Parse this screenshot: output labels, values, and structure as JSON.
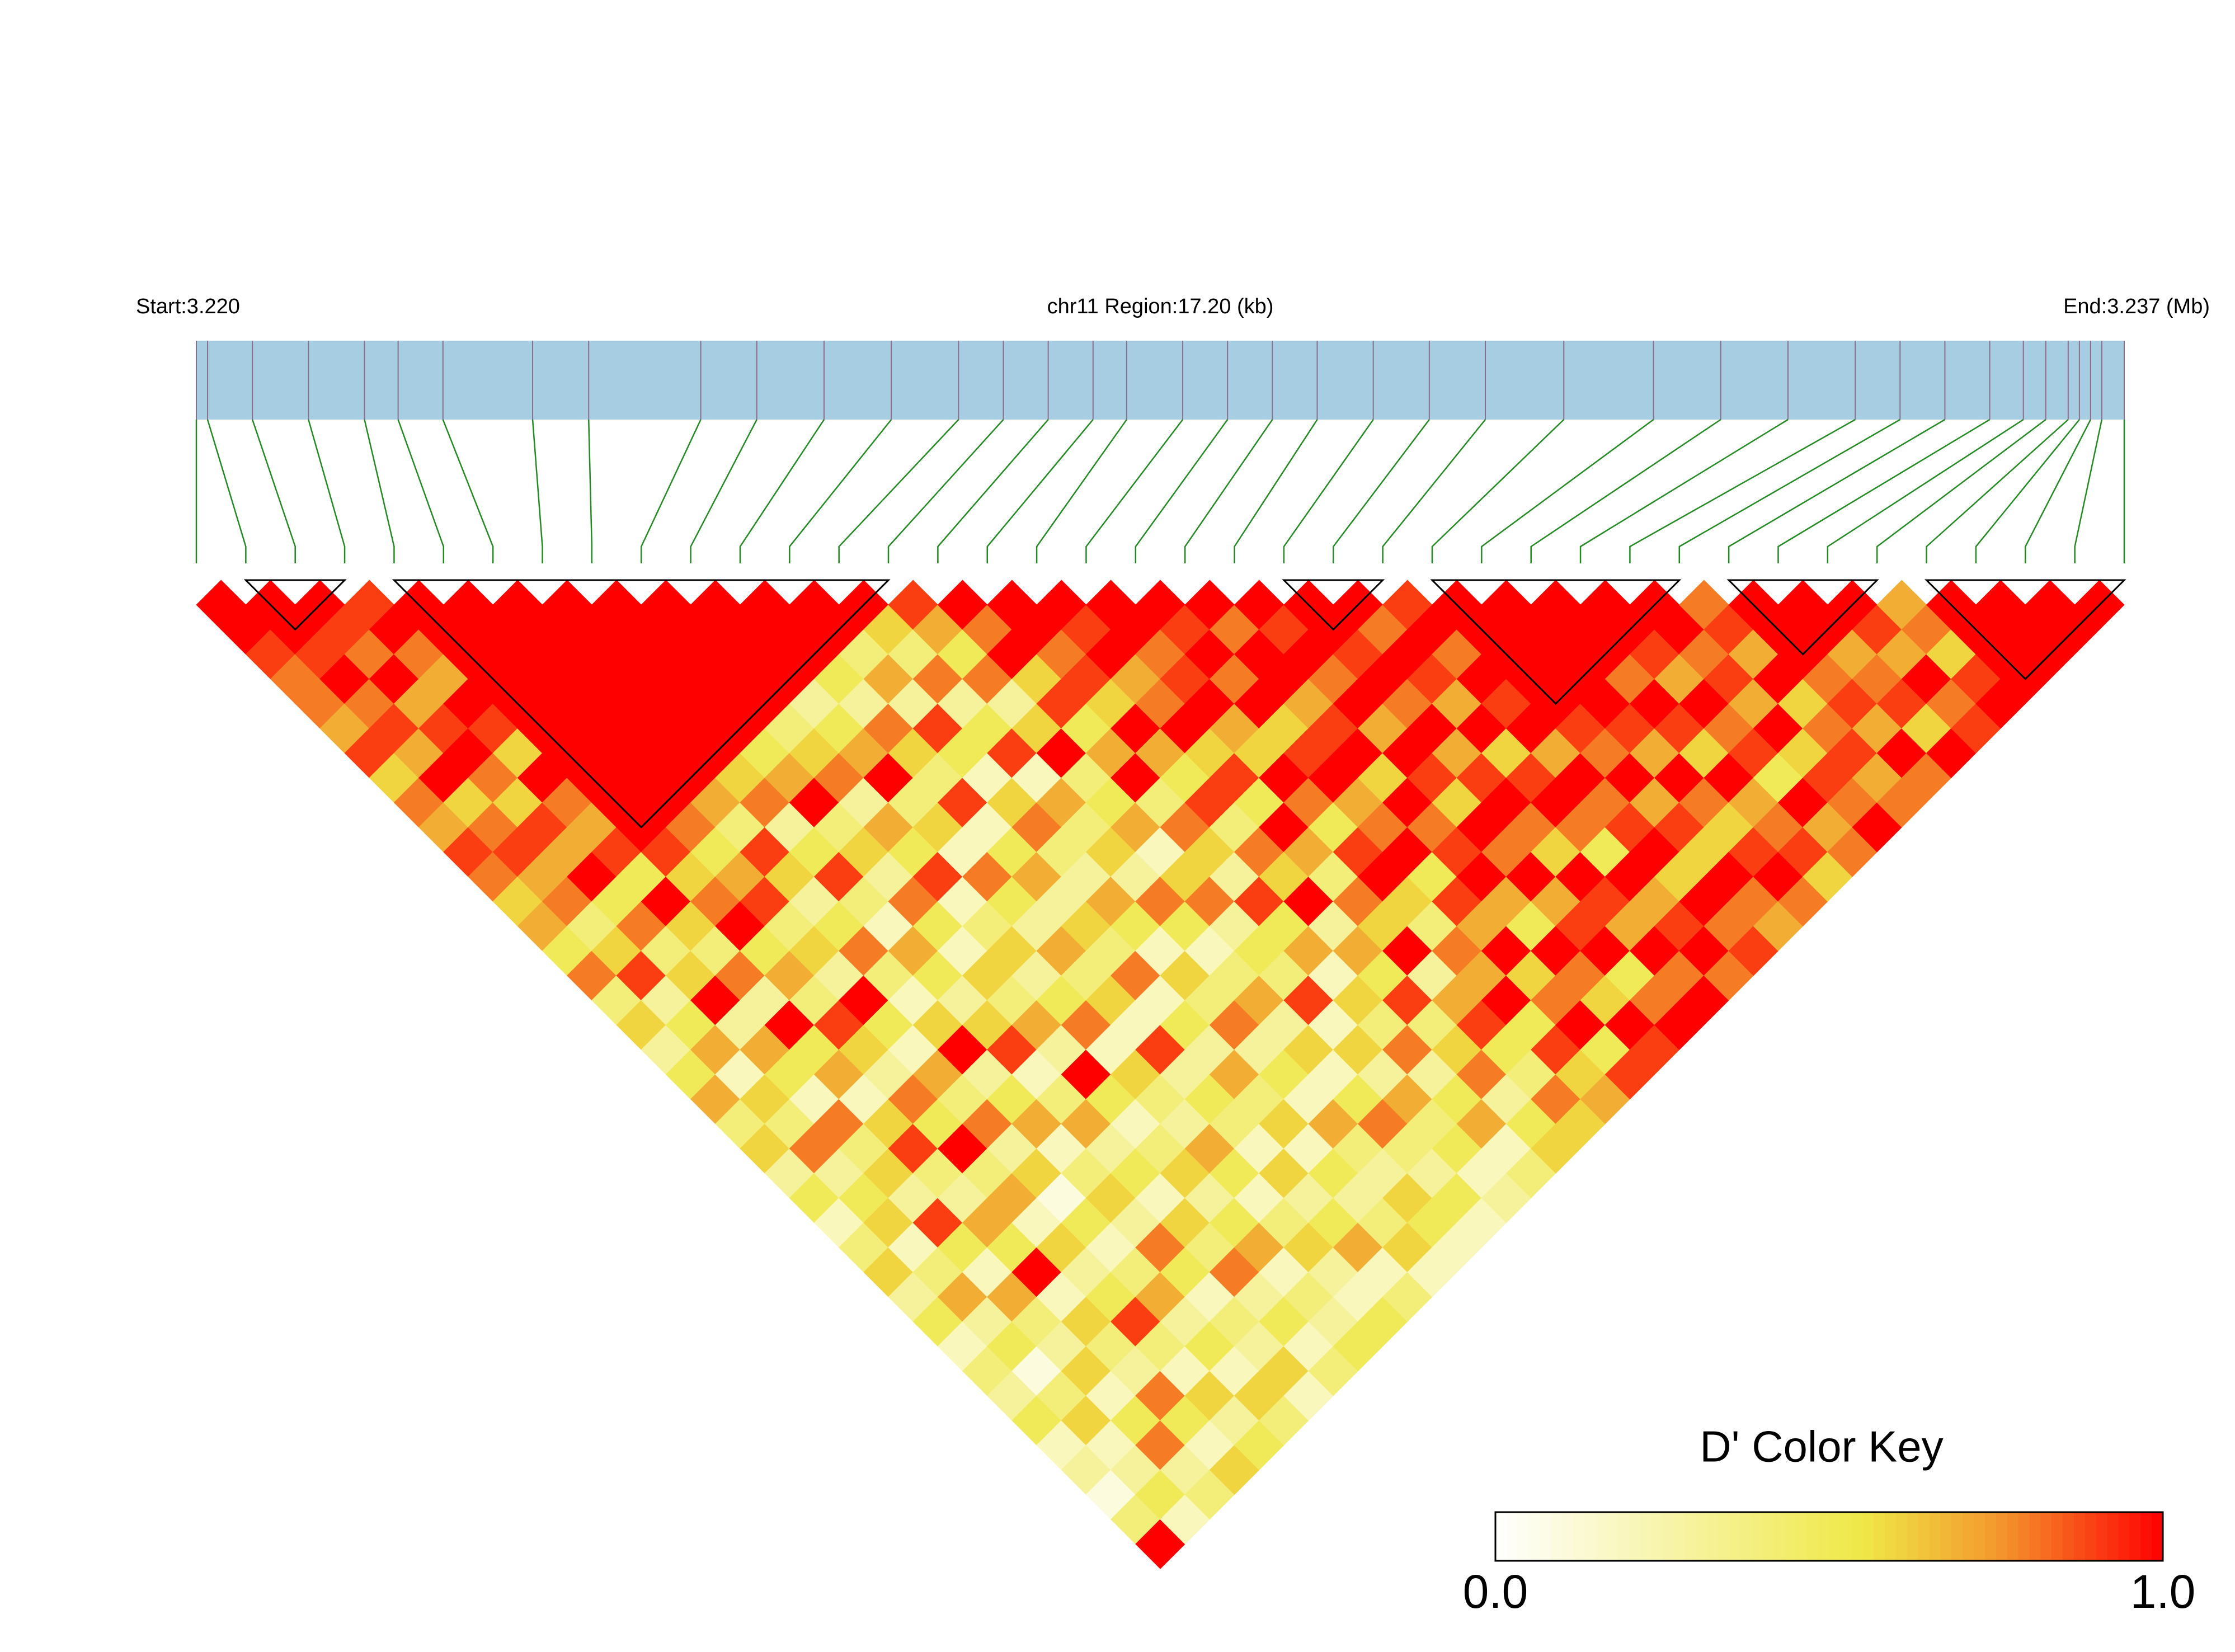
{
  "chart_data": {
    "type": "ld-heatmap",
    "start_label": "Start:3.220",
    "region_label": "chr11 Region:17.20 (kb)",
    "end_label": "End:3.237 (Mb)",
    "xlim": [
      3.22,
      3.2372
    ],
    "snp_positions": [
      3.22,
      3.2201,
      3.2205,
      3.221,
      3.2215,
      3.2218,
      3.2222,
      3.223,
      3.2235,
      3.2245,
      3.225,
      3.2256,
      3.2262,
      3.2268,
      3.2272,
      3.2276,
      3.228,
      3.2283,
      3.2288,
      3.2292,
      3.2296,
      3.23,
      3.2305,
      3.231,
      3.2315,
      3.2322,
      3.233,
      3.2336,
      3.2342,
      3.2348,
      3.2352,
      3.2356,
      3.236,
      3.2363,
      3.2365,
      3.2367,
      3.2368,
      3.2369,
      3.237,
      3.2372
    ],
    "track_color": "#a6cde2",
    "snp_line_color": "#8a6f8a",
    "connector_color": "#228b22",
    "block_outline_color": "#000000",
    "blocks": [
      [
        1,
        3
      ],
      [
        4,
        14
      ],
      [
        22,
        24
      ],
      [
        25,
        30
      ],
      [
        31,
        34
      ],
      [
        35,
        39
      ]
    ],
    "dprime": [
      [
        1,
        1,
        0.9,
        0.8,
        0.8,
        0.7,
        0.9,
        0.6,
        0.8,
        0.7,
        0.9,
        0.8,
        0.6,
        0.7,
        0.5,
        0.8,
        0.4,
        0.6,
        0.3,
        0.5,
        0.7,
        0.4,
        0.6,
        0.3,
        0.5,
        0.2,
        0.4,
        0.6,
        0.3,
        0.5,
        0.2,
        0.4,
        0.3,
        0.5,
        0.2,
        0.3,
        0.1,
        0.4,
        1
      ],
      [
        1,
        1,
        0.9,
        1,
        0.8,
        0.9,
        0.7,
        1,
        0.6,
        0.8,
        0.9,
        0.7,
        0.8,
        0.4,
        0.6,
        0.9,
        0.3,
        0.5,
        0.7,
        0.2,
        0.6,
        0.4,
        0.8,
        0.3,
        0.5,
        0.6,
        0.2,
        0.4,
        0.7,
        0.3,
        0.5,
        0.1,
        0.4,
        0.6,
        0.2,
        0.3,
        0.5,
        0.2
      ],
      [
        1,
        0.9,
        0.8,
        1,
        0.7,
        0.9,
        1,
        0.8,
        0.6,
        0.9,
        0.7,
        1,
        0.5,
        0.8,
        0.4,
        0.6,
        1,
        0.3,
        0.7,
        0.5,
        0.2,
        0.8,
        0.4,
        0.6,
        0.3,
        0.9,
        0.5,
        0.2,
        0.7,
        0.4,
        0.3,
        0.6,
        0.2,
        0.5,
        0.8,
        0.3,
        0.4
      ],
      [
        0.9,
        1,
        0.8,
        0.7,
        1,
        0.9,
        0.6,
        1,
        0.8,
        0.7,
        0.9,
        0.5,
        1,
        0.6,
        0.4,
        0.8,
        0.3,
        1,
        0.5,
        0.7,
        0.2,
        0.6,
        0.9,
        0.4,
        0.3,
        0.7,
        0.5,
        1,
        0.2,
        0.6,
        0.4,
        0.3,
        0.8,
        0.5,
        0.2,
        0.6
      ],
      [
        1,
        1,
        1,
        1,
        1,
        1,
        1,
        1,
        1,
        1,
        0.9,
        0.6,
        0.8,
        1,
        0.5,
        0.7,
        0.4,
        0.9,
        0.6,
        0.3,
        0.8,
        0.5,
        1,
        0.4,
        0.7,
        0.2,
        0.6,
        0.3,
        0.5,
        0.9,
        0.4,
        0.2,
        0.6,
        0.3,
        0.5
      ],
      [
        1,
        1,
        1,
        1,
        1,
        1,
        1,
        1,
        1,
        0.8,
        0.5,
        0.7,
        0.9,
        0.4,
        0.6,
        0.3,
        1,
        0.5,
        0.2,
        0.7,
        0.4,
        0.8,
        0.3,
        0.6,
        0.1,
        0.5,
        0.2,
        0.4,
        0.7,
        0.3,
        0.5,
        0.2,
        0.6,
        0.4
      ],
      [
        1,
        1,
        1,
        1,
        1,
        1,
        1,
        1,
        0.7,
        0.4,
        0.9,
        0.6,
        0.3,
        0.5,
        0.8,
        0.4,
        0.2,
        0.6,
        1,
        0.3,
        0.5,
        0.7,
        0.2,
        0.4,
        0.6,
        0.3,
        0.8,
        0.5,
        0.2,
        0.4,
        0.3,
        0.6,
        0.2
      ],
      [
        1,
        1,
        1,
        1,
        1,
        1,
        1,
        0.6,
        0.8,
        0.3,
        0.5,
        0.9,
        0.4,
        0.2,
        0.7,
        0.5,
        0.3,
        0.6,
        0.9,
        0.2,
        0.4,
        0.7,
        0.3,
        0.5,
        0.2,
        0.6,
        0.4,
        0.8,
        0.3,
        0.5,
        0.2,
        0.4
      ],
      [
        1,
        1,
        1,
        1,
        1,
        1,
        0.5,
        0.7,
        1,
        0.4,
        0.6,
        0.3,
        0.8,
        0.5,
        0.2,
        0.6,
        0.4,
        0.7,
        0.3,
        1,
        0.5,
        0.2,
        0.4,
        0.6,
        0.3,
        0.5,
        0.7,
        0.2,
        0.4,
        0.3,
        0.5
      ],
      [
        1,
        1,
        1,
        1,
        1,
        0.4,
        0.6,
        0.8,
        0.3,
        0.7,
        0.5,
        0.9,
        0.2,
        0.4,
        0.6,
        0.3,
        0.5,
        0.8,
        0.2,
        0.6,
        0.4,
        0.3,
        0.7,
        0.5,
        0.2,
        0.4,
        0.6,
        0.3,
        0.2,
        0.5
      ],
      [
        1,
        1,
        1,
        1,
        0.3,
        0.5,
        0.7,
        1,
        0.4,
        0.6,
        0.2,
        0.8,
        0.5,
        0.3,
        0.7,
        0.4,
        0.6,
        0.2,
        0.9,
        0.3,
        0.5,
        0.4,
        0.2,
        0.6,
        0.3,
        0.5,
        0.7,
        0.2,
        0.4
      ],
      [
        1,
        1,
        1,
        0.5,
        0.3,
        0.8,
        0.6,
        0.4,
        0.9,
        0.2,
        0.5,
        0.7,
        0.3,
        0.6,
        0.4,
        0.8,
        0.2,
        0.5,
        0.3,
        0.7,
        0.4,
        0.6,
        0.2,
        0.5,
        0.3,
        0.4,
        0.6,
        0.2
      ],
      [
        1,
        1,
        0.4,
        0.7,
        0.3,
        0.9,
        0.5,
        0.2,
        0.6,
        0.8,
        0.4,
        0.3,
        0.7,
        0.5,
        0.2,
        0.6,
        0.4,
        0.8,
        0.3,
        0.5,
        0.2,
        0.7,
        0.4,
        0.3,
        0.6,
        0.5,
        0.2
      ],
      [
        1,
        0.6,
        0.4,
        0.8,
        0.3,
        0.5,
        0.9,
        0.2,
        0.7,
        0.4,
        0.6,
        0.3,
        0.8,
        0.5,
        0.2,
        0.4,
        0.7,
        0.3,
        0.6,
        0.2,
        0.5,
        0.8,
        0.4,
        0.3,
        0.5,
        0.2
      ],
      [
        0.9,
        0.7,
        0.5,
        0.8,
        0.3,
        0.6,
        1,
        0.4,
        0.5,
        0.7,
        0.2,
        0.6,
        0.8,
        0.3,
        0.5,
        0.4,
        0.9,
        0.2,
        0.6,
        0.3,
        0.7,
        0.4,
        0.5,
        0.2,
        0.3
      ],
      [
        1,
        0.8,
        1,
        0.6,
        0.9,
        0.5,
        0.7,
        1,
        0.4,
        0.8,
        0.6,
        0.3,
        0.9,
        0.5,
        0.7,
        0.2,
        0.6,
        0.4,
        0.8,
        0.3,
        0.5,
        0.7,
        0.2,
        0.4
      ],
      [
        1,
        1,
        0.8,
        0.9,
        0.6,
        1,
        0.7,
        0.5,
        0.9,
        0.4,
        0.8,
        0.6,
        1,
        0.3,
        0.7,
        0.5,
        0.9,
        0.4,
        0.6,
        0.8,
        0.3,
        0.5,
        0.6
      ],
      [
        1,
        0.9,
        1,
        0.7,
        0.8,
        1,
        0.6,
        0.9,
        0.5,
        1,
        0.7,
        0.4,
        0.8,
        0.6,
        1,
        0.3,
        0.7,
        0.9,
        0.5,
        0.4,
        0.8,
        0.6
      ],
      [
        1,
        1,
        0.8,
        0.9,
        1,
        0.7,
        0.6,
        1,
        0.8,
        0.5,
        0.9,
        1,
        0.6,
        0.4,
        0.8,
        0.7,
        1,
        0.5,
        0.9,
        0.6,
        0.7
      ],
      [
        1,
        0.9,
        1,
        0.8,
        1,
        0.6,
        0.9,
        1,
        0.7,
        0.8,
        1,
        0.5,
        0.9,
        0.7,
        1,
        0.6,
        0.8,
        1,
        0.5,
        0.9
      ],
      [
        1,
        0.8,
        1,
        1,
        0.7,
        0.9,
        1,
        0.6,
        1,
        0.8,
        0.9,
        1,
        0.7,
        0.5,
        1,
        0.8,
        0.6,
        1,
        0.9
      ],
      [
        1,
        0.9,
        1,
        0.8,
        1,
        0.7,
        1,
        0.9,
        0.6,
        1,
        0.8,
        1,
        0.7,
        0.9,
        1,
        0.5,
        0.8,
        1
      ],
      [
        1,
        1,
        0.9,
        1,
        0.8,
        1,
        0.7,
        0.9,
        1,
        0.8,
        0.6,
        1,
        0.9,
        0.7,
        1,
        0.8,
        1
      ],
      [
        1,
        0.8,
        1,
        0.9,
        0.7,
        1,
        0.6,
        0.9,
        1,
        0.8,
        0.5,
        1,
        0.7,
        0.9,
        1,
        0.8
      ],
      [
        0.9,
        1,
        0.8,
        1,
        0.9,
        1,
        0.7,
        1,
        0.8,
        0.9,
        1,
        0.6,
        1,
        0.8,
        0.9
      ],
      [
        1,
        1,
        1,
        1,
        1,
        0.9,
        0.8,
        1,
        0.7,
        0.9,
        0.6,
        1,
        0.8,
        0.7
      ],
      [
        1,
        1,
        1,
        1,
        1,
        0.9,
        0.7,
        1,
        0.8,
        0.6,
        0.9,
        1,
        0.8
      ],
      [
        1,
        1,
        1,
        0.8,
        1,
        0.9,
        0.6,
        1,
        0.7,
        0.8,
        0.9,
        0.6
      ],
      [
        1,
        1,
        0.9,
        0.7,
        1,
        0.8,
        0.9,
        0.5,
        1,
        0.7,
        0.8
      ],
      [
        1,
        1,
        0.8,
        0.9,
        0.7,
        1,
        0.6,
        0.9,
        0.8,
        1
      ],
      [
        0.8,
        0.9,
        0.7,
        1,
        0.6,
        0.8,
        0.9,
        0.7,
        0.8
      ],
      [
        1,
        1,
        1,
        0.8,
        0.9,
        0.7,
        1,
        0.8
      ],
      [
        1,
        1,
        0.7,
        0.8,
        0.9,
        0.6,
        1
      ],
      [
        1,
        0.9,
        0.7,
        1,
        0.8,
        0.9
      ],
      [
        0.7,
        0.8,
        0.6,
        0.9,
        1
      ],
      [
        1,
        1,
        1,
        1
      ],
      [
        1,
        1,
        1
      ],
      [
        1,
        1
      ],
      [
        1
      ]
    ],
    "color_key": {
      "title": "D' Color Key",
      "clim": [
        0,
        1
      ],
      "ticks": [
        {
          "value": 0,
          "label": "0.0"
        },
        {
          "value": 1,
          "label": "1.0"
        }
      ],
      "colors": [
        {
          "value": 0,
          "color": "#ffffff"
        },
        {
          "value": 0.55,
          "color": "#efe847"
        },
        {
          "value": 0.75,
          "color": "#f39a2e"
        },
        {
          "value": 1,
          "color": "#ff0000"
        }
      ]
    }
  }
}
